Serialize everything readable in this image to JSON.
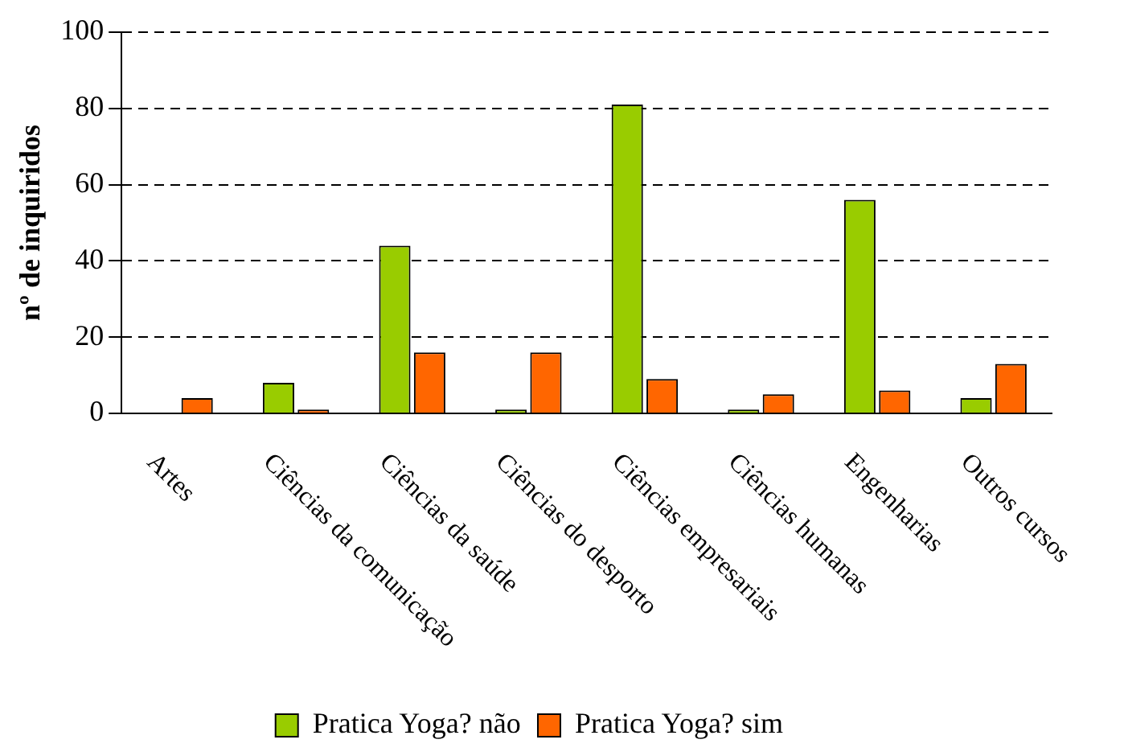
{
  "chart_data": {
    "type": "bar",
    "ylabel": "nº de inquiridos",
    "categories": [
      "Artes",
      "Ciências da comunicação",
      "Ciências da saúde",
      "Ciências do desporto",
      "Ciências empresariais",
      "Ciências humanas",
      "Engenharias",
      "Outros cursos"
    ],
    "series": [
      {
        "name": "Pratica Yoga? não",
        "color": "#99cc00",
        "values": [
          0,
          8,
          44,
          1,
          81,
          1,
          56,
          4
        ]
      },
      {
        "name": "Pratica Yoga? sim",
        "color": "#ff6600",
        "values": [
          4,
          1,
          16,
          16,
          9,
          5,
          6,
          13
        ]
      }
    ],
    "ylim": [
      0,
      100
    ],
    "yticks": [
      0,
      20,
      40,
      60,
      80,
      100
    ],
    "grid": "y",
    "legend": "bottom"
  }
}
